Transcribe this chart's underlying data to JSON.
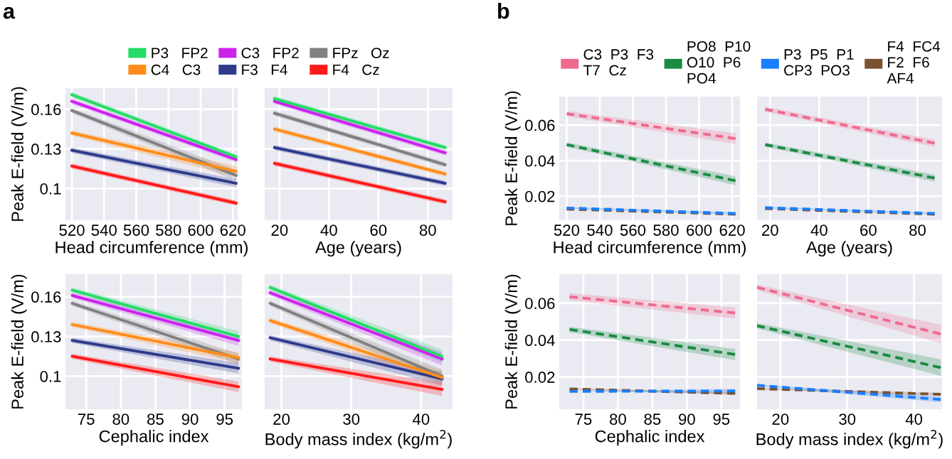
{
  "chart_data": [
    {
      "type": "line",
      "annotations": [
        "a"
      ],
      "ylabel": "Peak E-field (V/m)",
      "xlabel": "Head circumference (mm)",
      "x": [
        520,
        622
      ],
      "xlim": [
        516,
        623
      ],
      "xticks": [
        520,
        540,
        560,
        580,
        600,
        620
      ],
      "ylim": [
        0.076,
        0.176
      ],
      "yticks": [
        0.1,
        0.13,
        0.16
      ],
      "grid": true,
      "legend": "top",
      "line_style": "solid",
      "series": [
        {
          "name": "P3   FP2",
          "color": "#22dd66",
          "values": [
            0.171,
            0.124
          ],
          "lower": [
            0.169,
            0.122
          ],
          "upper": [
            0.173,
            0.126
          ]
        },
        {
          "name": "C4   C3",
          "color": "#ff8c1a",
          "values": [
            0.142,
            0.113
          ],
          "lower": [
            0.14,
            0.109
          ],
          "upper": [
            0.144,
            0.117
          ]
        },
        {
          "name": "C3   FP2",
          "color": "#cc22ee",
          "values": [
            0.166,
            0.122
          ],
          "lower": [
            0.164,
            0.12
          ],
          "upper": [
            0.168,
            0.124
          ]
        },
        {
          "name": "F3   F4",
          "color": "#2e3a8c",
          "values": [
            0.129,
            0.104
          ],
          "lower": [
            0.127,
            0.101
          ],
          "upper": [
            0.131,
            0.107
          ]
        },
        {
          "name": "FPz   Oz",
          "color": "#808080",
          "values": [
            0.159,
            0.11
          ],
          "lower": [
            0.157,
            0.106
          ],
          "upper": [
            0.161,
            0.114
          ]
        },
        {
          "name": "F4   Cz",
          "color": "#ff1a1a",
          "values": [
            0.117,
            0.089
          ],
          "lower": [
            0.115,
            0.087
          ],
          "upper": [
            0.119,
            0.091
          ]
        }
      ]
    },
    {
      "type": "line",
      "xlabel": "Age (years)",
      "x": [
        18,
        87
      ],
      "xlim": [
        14,
        90
      ],
      "xticks": [
        20,
        40,
        60,
        80
      ],
      "ylim": [
        0.076,
        0.176
      ],
      "yticks": [
        0.1,
        0.13,
        0.16
      ],
      "grid": true,
      "tick_labels": "x",
      "line_style": "solid",
      "series": [
        {
          "color": "#22dd66",
          "values": [
            0.168,
            0.131
          ],
          "lower": [
            0.166,
            0.129
          ],
          "upper": [
            0.17,
            0.133
          ]
        },
        {
          "color": "#ff8c1a",
          "values": [
            0.145,
            0.111
          ],
          "lower": [
            0.143,
            0.109
          ],
          "upper": [
            0.147,
            0.113
          ]
        },
        {
          "color": "#cc22ee",
          "values": [
            0.166,
            0.127
          ],
          "lower": [
            0.164,
            0.125
          ],
          "upper": [
            0.168,
            0.129
          ]
        },
        {
          "color": "#2e3a8c",
          "values": [
            0.131,
            0.104
          ],
          "lower": [
            0.129,
            0.102
          ],
          "upper": [
            0.133,
            0.106
          ]
        },
        {
          "color": "#808080",
          "values": [
            0.157,
            0.118
          ],
          "lower": [
            0.155,
            0.116
          ],
          "upper": [
            0.159,
            0.12
          ]
        },
        {
          "color": "#ff1a1a",
          "values": [
            0.119,
            0.09
          ],
          "lower": [
            0.117,
            0.088
          ],
          "upper": [
            0.121,
            0.092
          ]
        }
      ]
    },
    {
      "type": "line",
      "ylabel": "Peak E-field (V/m)",
      "xlabel": "Cephalic index",
      "x": [
        73,
        97
      ],
      "xlim": [
        72,
        97.5
      ],
      "xticks": [
        75,
        80,
        85,
        90,
        95
      ],
      "ylim": [
        0.075,
        0.177
      ],
      "yticks": [
        0.1,
        0.13,
        0.16
      ],
      "grid": true,
      "line_style": "solid",
      "series": [
        {
          "color": "#22dd66",
          "values": [
            0.165,
            0.13
          ],
          "lower": [
            0.163,
            0.126
          ],
          "upper": [
            0.167,
            0.134
          ]
        },
        {
          "color": "#ff8c1a",
          "values": [
            0.139,
            0.114
          ],
          "lower": [
            0.137,
            0.11
          ],
          "upper": [
            0.141,
            0.118
          ]
        },
        {
          "color": "#cc22ee",
          "values": [
            0.161,
            0.127
          ],
          "lower": [
            0.159,
            0.123
          ],
          "upper": [
            0.163,
            0.131
          ]
        },
        {
          "color": "#2e3a8c",
          "values": [
            0.127,
            0.106
          ],
          "lower": [
            0.125,
            0.102
          ],
          "upper": [
            0.129,
            0.11
          ]
        },
        {
          "color": "#808080",
          "values": [
            0.155,
            0.113
          ],
          "lower": [
            0.153,
            0.109
          ],
          "upper": [
            0.157,
            0.117
          ]
        },
        {
          "color": "#ff1a1a",
          "values": [
            0.115,
            0.092
          ],
          "lower": [
            0.113,
            0.088
          ],
          "upper": [
            0.117,
            0.096
          ]
        }
      ]
    },
    {
      "type": "line",
      "xlabel": "Body mass index (kg/m$^{2}$)",
      "x": [
        18.4,
        43
      ],
      "xlim": [
        17.6,
        44.5
      ],
      "xticks": [
        20,
        30,
        40
      ],
      "ylim": [
        0.075,
        0.177
      ],
      "yticks": [
        0.1,
        0.13,
        0.16
      ],
      "grid": true,
      "tick_labels": "x",
      "line_style": "solid",
      "series": [
        {
          "color": "#22dd66",
          "values": [
            0.167,
            0.115
          ],
          "lower": [
            0.165,
            0.11
          ],
          "upper": [
            0.169,
            0.12
          ]
        },
        {
          "color": "#ff8c1a",
          "values": [
            0.142,
            0.099
          ],
          "lower": [
            0.14,
            0.094
          ],
          "upper": [
            0.144,
            0.104
          ]
        },
        {
          "color": "#cc22ee",
          "values": [
            0.163,
            0.113
          ],
          "lower": [
            0.161,
            0.108
          ],
          "upper": [
            0.165,
            0.118
          ]
        },
        {
          "color": "#2e3a8c",
          "values": [
            0.129,
            0.098
          ],
          "lower": [
            0.127,
            0.093
          ],
          "upper": [
            0.131,
            0.103
          ]
        },
        {
          "color": "#808080",
          "values": [
            0.155,
            0.1
          ],
          "lower": [
            0.153,
            0.095
          ],
          "upper": [
            0.157,
            0.105
          ]
        },
        {
          "color": "#ff1a1a",
          "values": [
            0.113,
            0.09
          ],
          "lower": [
            0.111,
            0.085
          ],
          "upper": [
            0.115,
            0.095
          ]
        }
      ]
    },
    {
      "type": "line",
      "annotations": [
        "b"
      ],
      "ylabel": "Peak E-field (V/m)",
      "xlabel": "Head circumference (mm)",
      "x": [
        520,
        622
      ],
      "xlim": [
        515.5,
        624.7
      ],
      "xticks": [
        520,
        540,
        560,
        580,
        600,
        620
      ],
      "ylim": [
        0.0065,
        0.076
      ],
      "yticks": [
        0.02,
        0.04,
        0.06
      ],
      "grid": true,
      "legend": "top",
      "line_style": "dashed",
      "series": [
        {
          "name": "C3  P3  F3\nT7  Cz",
          "color": "#ee6a8f",
          "values": [
            0.0664,
            0.0524
          ],
          "lower": [
            0.0649,
            0.0494
          ],
          "upper": [
            0.0679,
            0.0554
          ]
        },
        {
          "name": "PO8  P10\nO10  P6\nPO4",
          "color": "#1a8a44",
          "values": [
            0.049,
            0.0287
          ],
          "lower": [
            0.0478,
            0.0262
          ],
          "upper": [
            0.0502,
            0.0312
          ]
        },
        {
          "name": "P3  P5  P1\nCP3  PO3",
          "color": "#1a7fff",
          "values": [
            0.0134,
            0.0103
          ],
          "lower": [
            0.0129,
            0.0096
          ],
          "upper": [
            0.0139,
            0.011
          ]
        },
        {
          "name": "F4  FC4\nF2  F6\nAF4",
          "color": "#7a5230",
          "values": [
            0.0128,
            0.0099
          ]
        }
      ]
    },
    {
      "type": "line",
      "xlabel": "Age (years)",
      "x": [
        18,
        87
      ],
      "xlim": [
        14.7,
        90
      ],
      "xticks": [
        20,
        40,
        60,
        80
      ],
      "ylim": [
        0.0065,
        0.076
      ],
      "yticks": [
        0.02,
        0.04,
        0.06
      ],
      "grid": true,
      "tick_labels": "x",
      "line_style": "dashed",
      "series": [
        {
          "color": "#ee6a8f",
          "values": [
            0.0689,
            0.0498
          ],
          "lower": [
            0.0675,
            0.0478
          ],
          "upper": [
            0.0703,
            0.0518
          ]
        },
        {
          "color": "#1a8a44",
          "values": [
            0.049,
            0.0302
          ],
          "lower": [
            0.0478,
            0.0282
          ],
          "upper": [
            0.0502,
            0.0322
          ]
        },
        {
          "color": "#1a7fff",
          "values": [
            0.0136,
            0.0103
          ],
          "lower": [
            0.0131,
            0.0098
          ],
          "upper": [
            0.0141,
            0.0108
          ]
        },
        {
          "color": "#7a5230",
          "values": [
            0.0131,
            0.0099
          ]
        }
      ]
    },
    {
      "type": "line",
      "ylabel": "Peak E-field (V/m)",
      "xlabel": "Cephalic index",
      "x": [
        73,
        97
      ],
      "xlim": [
        71.5,
        97.7
      ],
      "xticks": [
        75,
        80,
        85,
        90,
        95
      ],
      "ylim": [
        0.0025,
        0.0757
      ],
      "yticks": [
        0.02,
        0.04,
        0.06
      ],
      "grid": true,
      "line_style": "dashed",
      "series": [
        {
          "color": "#ee6a8f",
          "values": [
            0.0635,
            0.0547
          ],
          "lower": [
            0.0615,
            0.0517
          ],
          "upper": [
            0.0655,
            0.0577
          ]
        },
        {
          "color": "#1a8a44",
          "values": [
            0.0458,
            0.0322
          ],
          "lower": [
            0.0443,
            0.0292
          ],
          "upper": [
            0.0473,
            0.0352
          ]
        },
        {
          "color": "#1a7fff",
          "values": [
            0.0122,
            0.0124
          ],
          "lower": [
            0.0122,
            0.0112
          ],
          "upper": [
            0.0122,
            0.0136
          ]
        },
        {
          "color": "#7a5230",
          "values": [
            0.0135,
            0.0111
          ],
          "lower": [
            0.0131,
            0.0103
          ],
          "upper": [
            0.0139,
            0.0119
          ]
        }
      ]
    },
    {
      "type": "line",
      "xlabel": "Body mass index (kg/m$^{2}$)",
      "x": [
        16.5,
        44
      ],
      "xlim": [
        16.5,
        44.2
      ],
      "xticks": [
        20,
        30,
        40
      ],
      "ylim": [
        0.0025,
        0.0757
      ],
      "yticks": [
        0.02,
        0.04,
        0.06
      ],
      "grid": true,
      "tick_labels": "x",
      "line_style": "dashed",
      "series": [
        {
          "color": "#ee6a8f",
          "values": [
            0.0686,
            0.0433
          ],
          "lower": [
            0.0671,
            0.0383
          ],
          "upper": [
            0.0701,
            0.0483
          ]
        },
        {
          "color": "#1a8a44",
          "values": [
            0.0478,
            0.0251
          ],
          "lower": [
            0.0463,
            0.0206
          ],
          "upper": [
            0.0493,
            0.0296
          ]
        },
        {
          "color": "#1a7fff",
          "values": [
            0.0155,
            0.0078
          ],
          "lower": [
            0.015,
            0.0063
          ],
          "upper": [
            0.016,
            0.0093
          ]
        },
        {
          "color": "#7a5230",
          "values": [
            0.0137,
            0.0106
          ],
          "lower": [
            0.0133,
            0.0098
          ],
          "upper": [
            0.0141,
            0.0114
          ]
        }
      ]
    }
  ]
}
